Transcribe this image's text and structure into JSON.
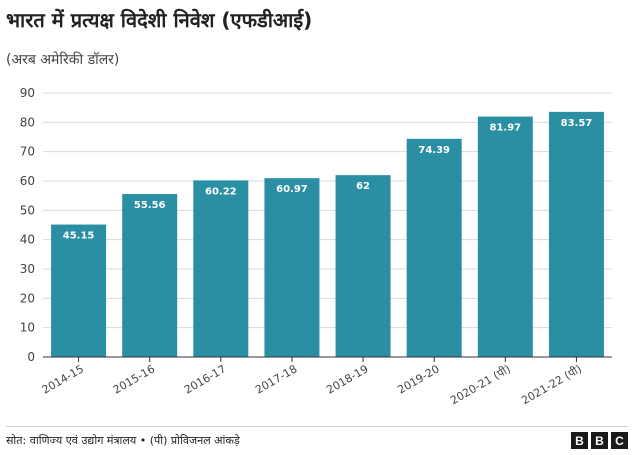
{
  "title": "भारत में प्रत्यक्ष विदेशी निवेश (एफडीआई)",
  "subtitle": "(अरब अमेरिकी डॉलर)",
  "source": "सोत: वाणिज्य एवं उद्योग मंत्रालय • (पी) प्रोविजनल आंकड़े",
  "logo": [
    "B",
    "B",
    "C"
  ],
  "colors": {
    "bar": "#2a8fa3",
    "grid": "#d9d9d9",
    "axis": "#333333"
  },
  "chart_data": {
    "type": "bar",
    "categories": [
      "2014-15",
      "2015-16",
      "2016-17",
      "2017-18",
      "2018-19",
      "2019-20",
      "2020-21 (पी)",
      "2021-22 (पी)"
    ],
    "values": [
      45.15,
      55.56,
      60.22,
      60.97,
      62,
      74.39,
      81.97,
      83.57
    ],
    "value_labels": [
      "45.15",
      "55.56",
      "60.22",
      "60.97",
      "62",
      "74.39",
      "81.97",
      "83.57"
    ],
    "yticks": [
      0,
      10,
      20,
      30,
      40,
      50,
      60,
      70,
      80,
      90
    ],
    "ylim": [
      0,
      90
    ],
    "grid": true,
    "xlabel": "",
    "ylabel": ""
  }
}
